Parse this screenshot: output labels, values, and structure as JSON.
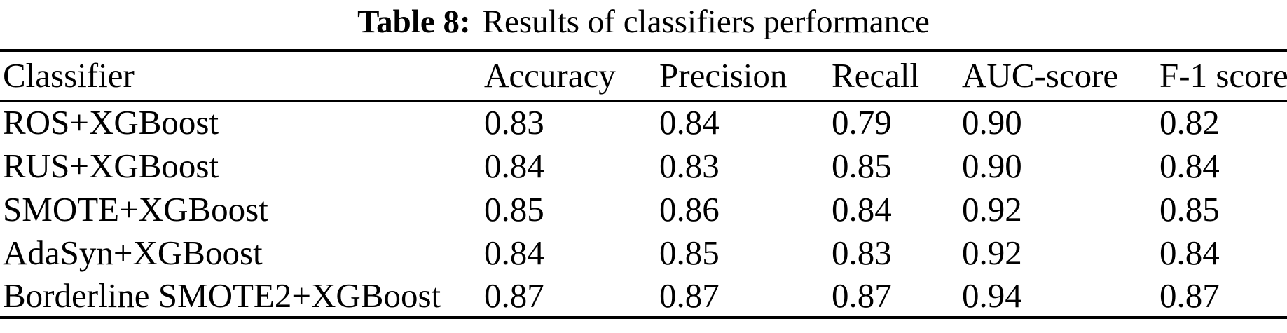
{
  "caption": {
    "label": "Table 8:",
    "text": "Results of classifiers performance"
  },
  "table": {
    "columns": [
      "Classifier",
      "Accuracy",
      "Precision",
      "Recall",
      "AUC-score",
      "F-1 score"
    ],
    "rows": [
      [
        "ROS+XGBoost",
        "0.83",
        "0.84",
        "0.79",
        "0.90",
        "0.82"
      ],
      [
        "RUS+XGBoost",
        "0.84",
        "0.83",
        "0.85",
        "0.90",
        "0.84"
      ],
      [
        "SMOTE+XGBoost",
        "0.85",
        "0.86",
        "0.84",
        "0.92",
        "0.85"
      ],
      [
        "AdaSyn+XGBoost",
        "0.84",
        "0.85",
        "0.83",
        "0.92",
        "0.84"
      ],
      [
        "Borderline SMOTE2+XGBoost",
        "0.87",
        "0.87",
        "0.87",
        "0.94",
        "0.87"
      ]
    ]
  },
  "colors": {
    "text": "#000000",
    "background": "#ffffff",
    "rule": "#000000"
  },
  "chart_data": {
    "type": "table",
    "title": "Table 8: Results of classifiers performance",
    "columns": [
      "Classifier",
      "Accuracy",
      "Precision",
      "Recall",
      "AUC-score",
      "F-1 score"
    ],
    "rows": [
      [
        "ROS+XGBoost",
        0.83,
        0.84,
        0.79,
        0.9,
        0.82
      ],
      [
        "RUS+XGBoost",
        0.84,
        0.83,
        0.85,
        0.9,
        0.84
      ],
      [
        "SMOTE+XGBoost",
        0.85,
        0.86,
        0.84,
        0.92,
        0.85
      ],
      [
        "AdaSyn+XGBoost",
        0.84,
        0.85,
        0.83,
        0.92,
        0.84
      ],
      [
        "Borderline SMOTE2+XGBoost",
        0.87,
        0.87,
        0.87,
        0.94,
        0.87
      ]
    ]
  }
}
